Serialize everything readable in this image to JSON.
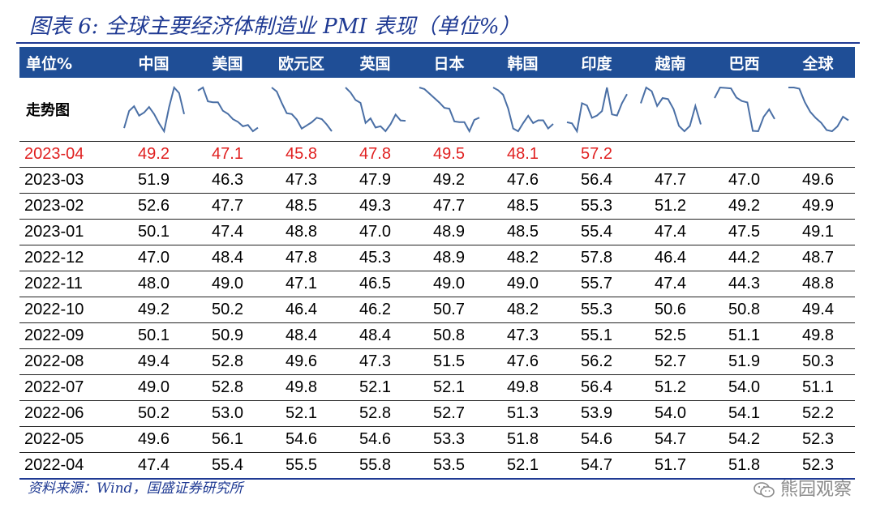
{
  "title": "图表 6:  全球主要经济体制造业 PMI 表现（单位%）",
  "header": [
    "单位%",
    "中国",
    "美国",
    "欧元区",
    "英国",
    "日本",
    "韩国",
    "印度",
    "越南",
    "巴西",
    "全球"
  ],
  "trend_label": "走势图",
  "sparkline_color": "#4a6fa5",
  "highlight_color": "#e02020",
  "rows": [
    [
      "2023-04",
      "49.2",
      "47.1",
      "45.8",
      "47.8",
      "49.5",
      "48.1",
      "57.2",
      "",
      "",
      ""
    ],
    [
      "2023-03",
      "51.9",
      "46.3",
      "47.3",
      "47.9",
      "49.2",
      "47.6",
      "56.4",
      "47.7",
      "47.0",
      "49.6"
    ],
    [
      "2023-02",
      "52.6",
      "47.7",
      "48.5",
      "49.3",
      "47.7",
      "48.5",
      "55.3",
      "51.2",
      "49.2",
      "49.9"
    ],
    [
      "2023-01",
      "50.1",
      "47.4",
      "48.8",
      "47.0",
      "48.9",
      "48.5",
      "55.4",
      "47.4",
      "47.5",
      "49.1"
    ],
    [
      "2022-12",
      "47.0",
      "48.4",
      "47.8",
      "45.3",
      "48.9",
      "48.2",
      "57.8",
      "46.4",
      "44.2",
      "48.7"
    ],
    [
      "2022-11",
      "48.0",
      "49.0",
      "47.1",
      "46.5",
      "49.0",
      "49.0",
      "55.7",
      "47.4",
      "44.3",
      "48.8"
    ],
    [
      "2022-10",
      "49.2",
      "50.2",
      "46.4",
      "46.2",
      "50.7",
      "48.2",
      "55.3",
      "50.6",
      "50.8",
      "49.4"
    ],
    [
      "2022-09",
      "50.1",
      "50.9",
      "48.4",
      "48.4",
      "50.8",
      "47.3",
      "55.1",
      "52.5",
      "51.1",
      "49.8"
    ],
    [
      "2022-08",
      "49.4",
      "52.8",
      "49.6",
      "47.3",
      "51.5",
      "47.6",
      "56.2",
      "52.7",
      "51.9",
      "50.3"
    ],
    [
      "2022-07",
      "49.0",
      "52.8",
      "49.8",
      "52.1",
      "52.1",
      "49.8",
      "56.4",
      "51.2",
      "54.0",
      "51.1"
    ],
    [
      "2022-06",
      "50.2",
      "53.0",
      "52.1",
      "52.8",
      "52.7",
      "51.3",
      "53.9",
      "54.0",
      "54.1",
      "52.2"
    ],
    [
      "2022-05",
      "49.6",
      "56.1",
      "54.6",
      "54.6",
      "53.3",
      "51.8",
      "54.6",
      "54.7",
      "54.2",
      "52.3"
    ],
    [
      "2022-04",
      "47.4",
      "55.4",
      "55.5",
      "55.8",
      "53.5",
      "52.1",
      "54.7",
      "51.7",
      "51.8",
      "52.3"
    ]
  ],
  "source": "资料来源：Wind，国盛证券研究所",
  "watermark": "熊园观察",
  "watermark_icon": "wechat-icon"
}
